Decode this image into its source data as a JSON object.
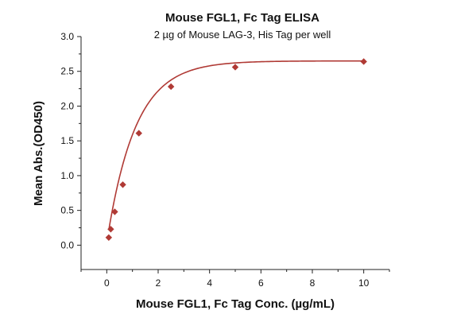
{
  "chart_data": {
    "type": "scatter",
    "title": "Mouse FGL1, Fc Tag ELISA",
    "subtitle": "2 µg of Mouse LAG-3, His Tag per well",
    "xlabel": "Mouse FGL1, Fc Tag Conc. (µg/mL)",
    "ylabel": "Mean Abs.(OD450)",
    "xlim": [
      -1,
      11
    ],
    "ylim": [
      -0.35,
      3.0
    ],
    "x_ticks": [
      0,
      2,
      4,
      6,
      8,
      10
    ],
    "x_tick_labels": [
      "0",
      "2",
      "4",
      "6",
      "8",
      "10"
    ],
    "y_ticks": [
      0.0,
      0.5,
      1.0,
      1.5,
      2.0,
      2.5,
      3.0
    ],
    "y_tick_labels": [
      "0.0",
      "0.5",
      "1.0",
      "1.5",
      "2.0",
      "2.5",
      "3.0"
    ],
    "grid": false,
    "legend": "none",
    "series": [
      {
        "marker": "diamond",
        "color": "#b03a35",
        "points": [
          {
            "x": 0.078,
            "y": 0.11
          },
          {
            "x": 0.156,
            "y": 0.23
          },
          {
            "x": 0.3125,
            "y": 0.48
          },
          {
            "x": 0.625,
            "y": 0.87
          },
          {
            "x": 1.25,
            "y": 1.61
          },
          {
            "x": 2.5,
            "y": 2.28
          },
          {
            "x": 5,
            "y": 2.56
          },
          {
            "x": 10,
            "y": 2.64
          }
        ],
        "fit_curve": {
          "model": "exponential_rise",
          "y0": 0.04,
          "ymax": 2.65,
          "k": 0.9
        }
      }
    ]
  }
}
